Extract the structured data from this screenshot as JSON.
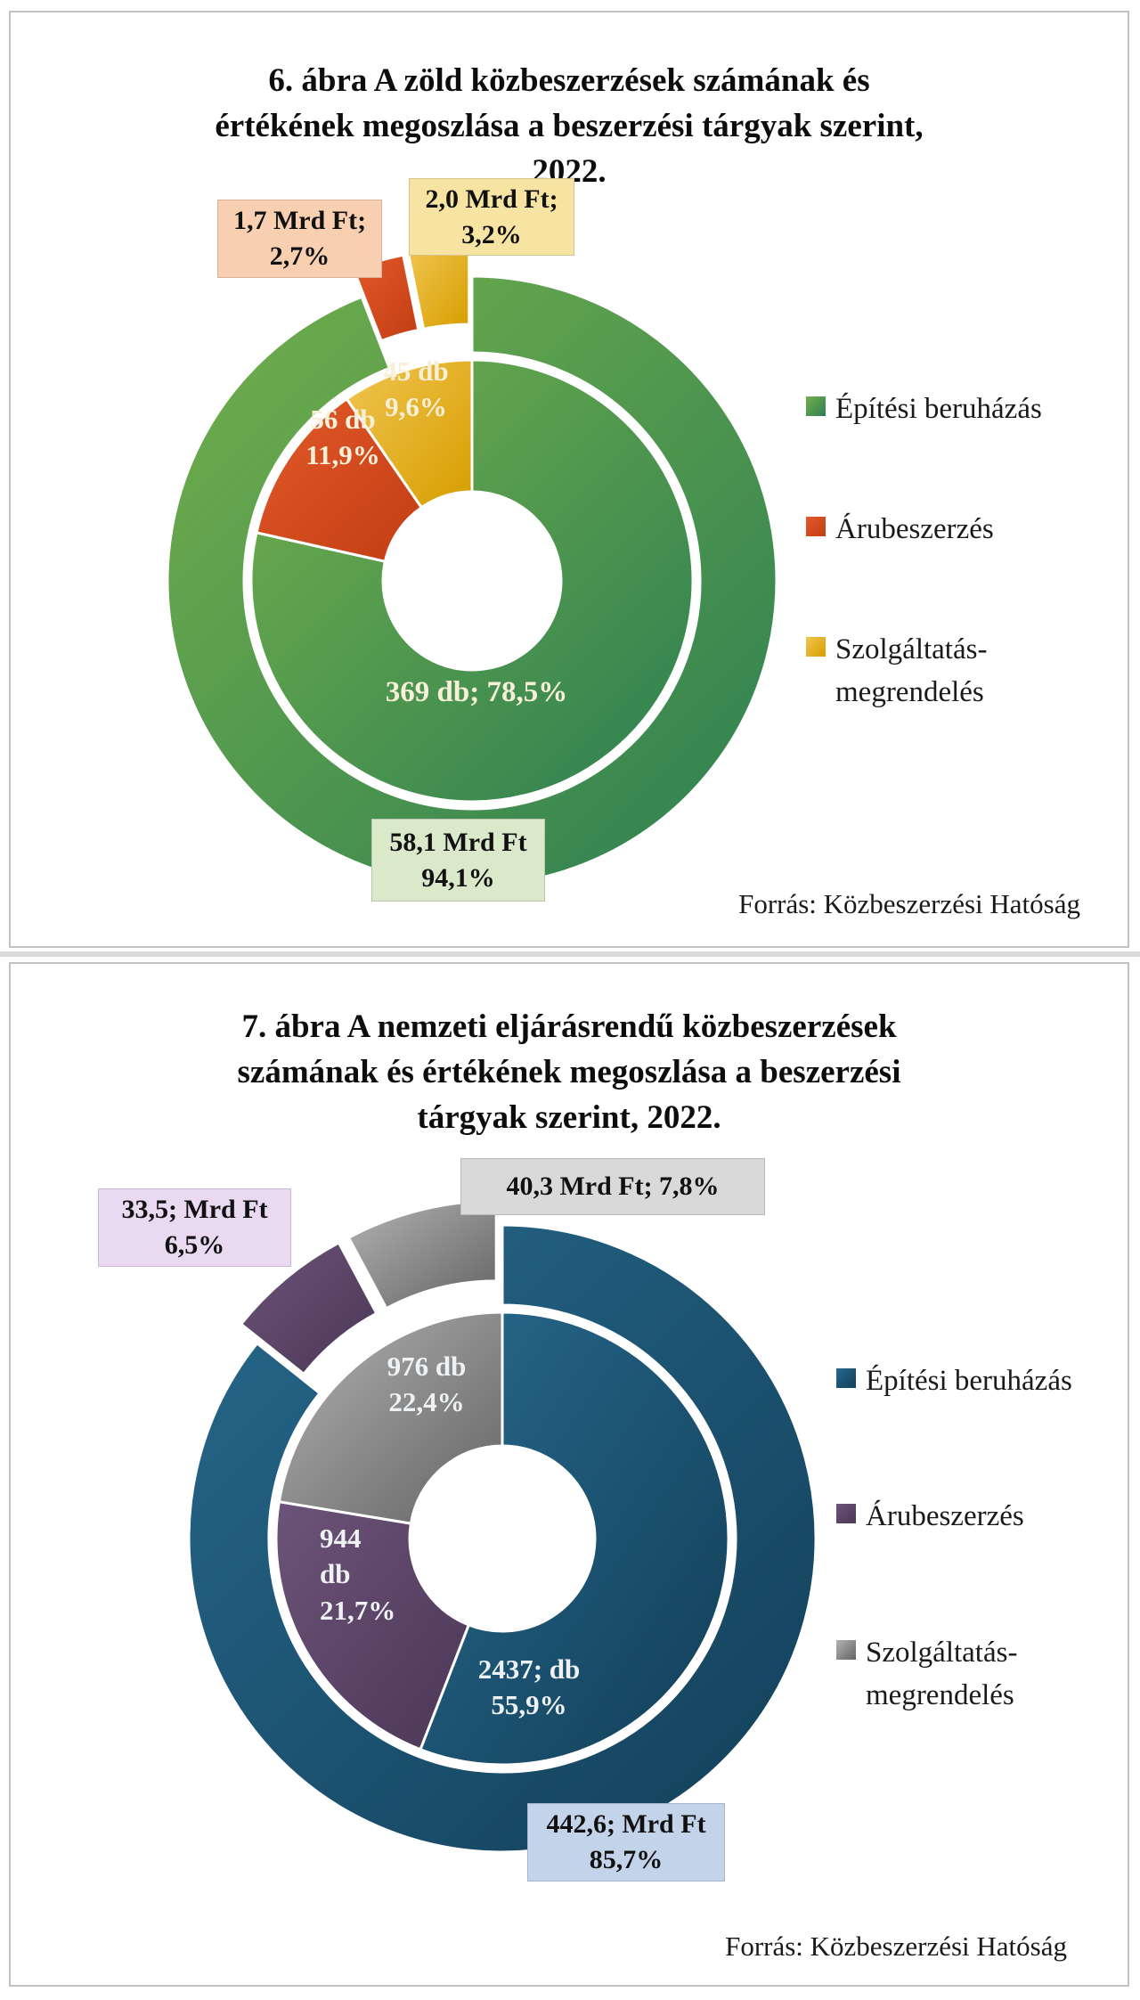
{
  "page": {
    "background": "#ffffff",
    "panel_border": "#c2c2c2",
    "divider_color": "#dadada"
  },
  "chart_data": [
    {
      "type": "donut",
      "title": "6. ábra A zöld közbeszerzések számának és\nértékének megoszlása a beszerzési tárgyak szerint,\n2022.",
      "source": "Forrás: Közbeszerzési Hatóság",
      "legend_position": "right",
      "series": [
        {
          "name": "Építési beruházás",
          "value_mrd_ft": 58.1,
          "value_pct": 94.1,
          "count_db": 369,
          "count_pct": 78.5,
          "color_from": "#74b04b",
          "color_to": "#2d7f52"
        },
        {
          "name": "Árubeszerzés",
          "value_mrd_ft": 1.7,
          "value_pct": 2.7,
          "count_db": 56,
          "count_pct": 11.9,
          "color_from": "#e35a2a",
          "color_to": "#c23d14"
        },
        {
          "name": "Szolgáltatás-megrendelés",
          "value_mrd_ft": 2.0,
          "value_pct": 3.2,
          "count_db": 45,
          "count_pct": 9.6,
          "color_from": "#f0c550",
          "color_to": "#d79e00"
        }
      ],
      "legend": [
        {
          "label": "Építési beruházás"
        },
        {
          "label": "Árubeszerzés"
        },
        {
          "label": "Szolgáltatás-\nmegrendelés"
        }
      ],
      "callouts": {
        "goods_value": {
          "text": "1,7 Mrd Ft;\n2,7%",
          "bg": "#f8cfb0"
        },
        "services_value": {
          "text": "2,0 Mrd Ft;\n3,2%",
          "bg": "#f7e4a2"
        },
        "construction_value": {
          "text": "58,1 Mrd Ft\n94,1%",
          "bg": "#d9e9ca"
        }
      },
      "inner_labels": {
        "services_count": "45 db\n9,6%",
        "goods_count": "56 db\n11,9%",
        "construction_count": "369 db; 78,5%"
      }
    },
    {
      "type": "donut",
      "title": "7. ábra A nemzeti eljárásrendű közbeszerzések\nszámának és értékének megoszlása a beszerzési\ntárgyak szerint, 2022.",
      "source": "Forrás: Közbeszerzési Hatóság",
      "legend_position": "right",
      "series": [
        {
          "name": "Építési beruházás",
          "value_mrd_ft": 442.6,
          "value_pct": 85.7,
          "count_db": 2437,
          "count_pct": 55.9,
          "color_from": "#27688c",
          "color_to": "#123f58"
        },
        {
          "name": "Árubeszerzés",
          "value_mrd_ft": 33.5,
          "value_pct": 6.5,
          "count_db": 944,
          "count_pct": 21.7,
          "color_from": "#6d5379",
          "color_to": "#4b3756"
        },
        {
          "name": "Szolgáltatás-megrendelés",
          "value_mrd_ft": 40.3,
          "value_pct": 7.8,
          "count_db": 976,
          "count_pct": 22.4,
          "color_from": "#b3b3b3",
          "color_to": "#636363"
        }
      ],
      "legend": [
        {
          "label": "Építési beruházás"
        },
        {
          "label": "Árubeszerzés"
        },
        {
          "label": "Szolgáltatás-\nmegrendelés"
        }
      ],
      "callouts": {
        "goods_value": {
          "text": "33,5; Mrd Ft\n6,5%",
          "bg": "#e9d9f1"
        },
        "services_value": {
          "text": "40,3 Mrd Ft; 7,8%",
          "bg": "#d9d9d9"
        },
        "construction_value": {
          "text": "442,6; Mrd Ft\n85,7%",
          "bg": "#c3d4ea"
        }
      },
      "inner_labels": {
        "services_count": "976 db\n22,4%",
        "goods_count": "944\ndb\n21,7%",
        "construction_count": "2437; db\n55,9%"
      }
    }
  ]
}
